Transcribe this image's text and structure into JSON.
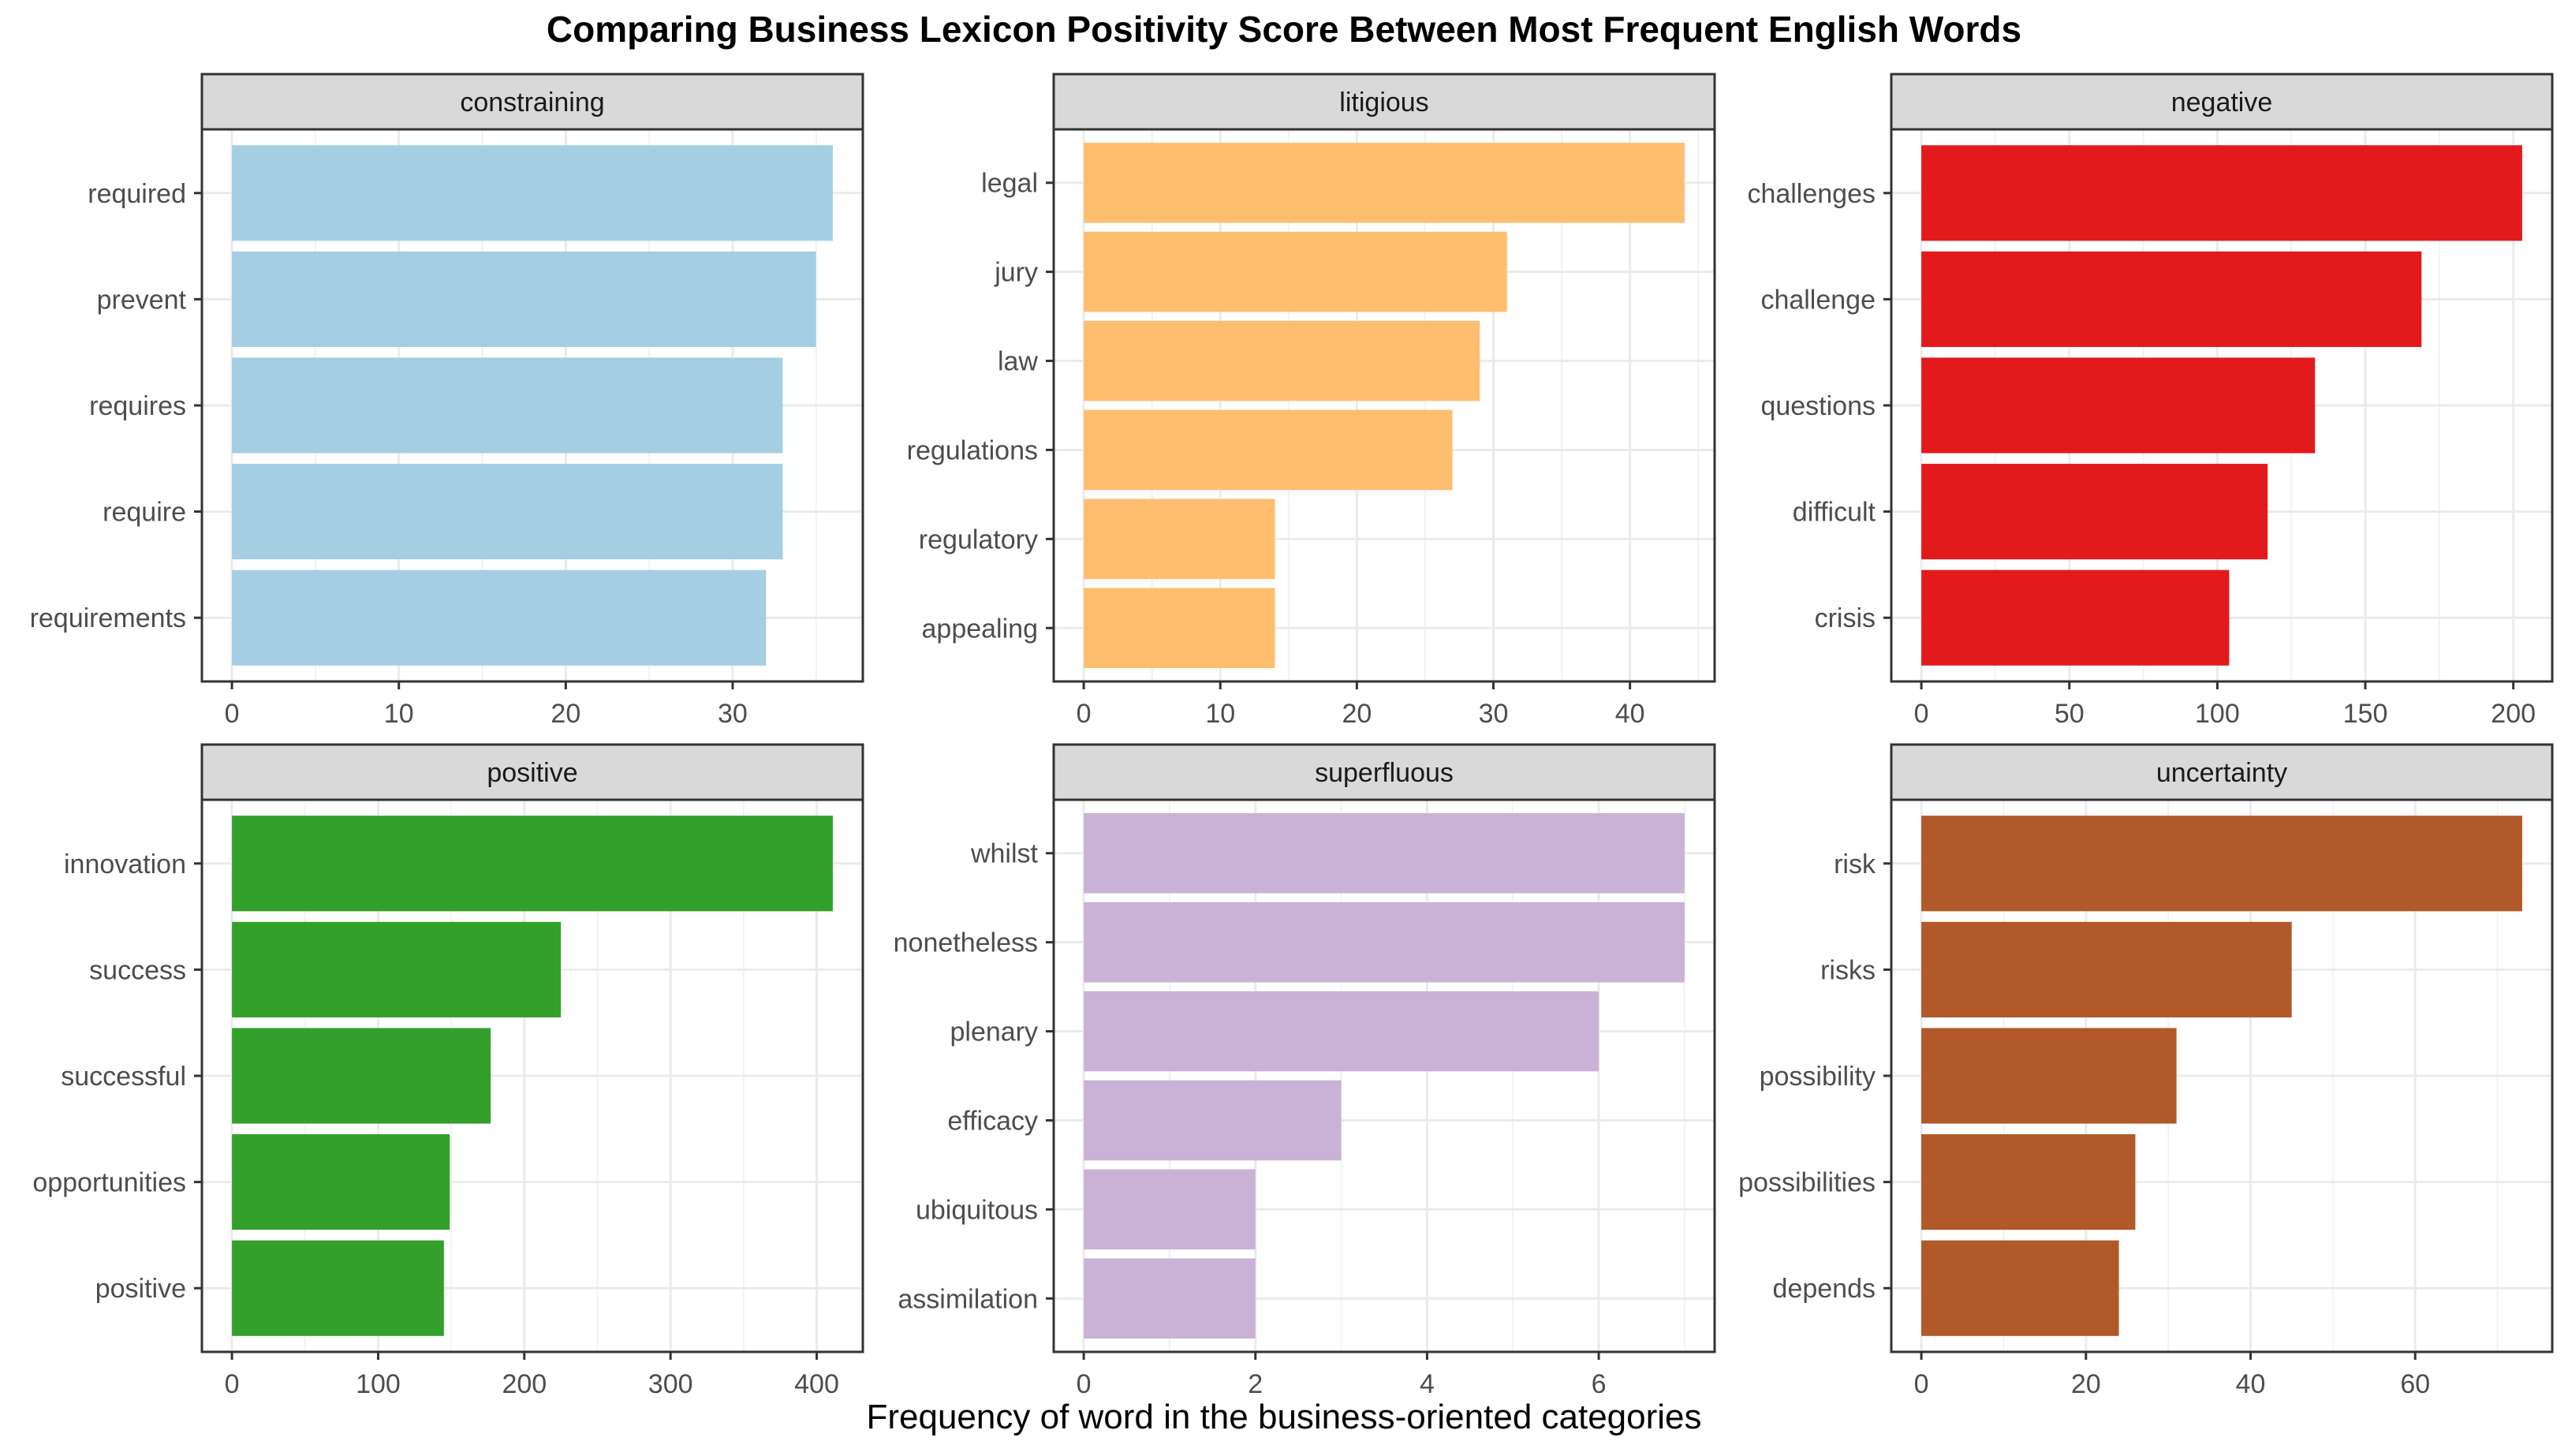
{
  "title": "Comparing Business Lexicon Positivity Score Between Most Frequent English Words",
  "xlabel": "Frequency of word in the business-oriented categories",
  "chart_data": [
    {
      "type": "bar",
      "facet": "constraining",
      "color": "#A6CEE3",
      "categories": [
        "required",
        "prevent",
        "requires",
        "require",
        "requirements"
      ],
      "values": [
        36,
        35,
        33,
        33,
        32
      ],
      "xlim": [
        -1.8,
        37.8
      ],
      "xticks": [
        0,
        10,
        20,
        30
      ]
    },
    {
      "type": "bar",
      "facet": "litigious",
      "color": "#FDBF6F",
      "categories": [
        "legal",
        "jury",
        "law",
        "regulations",
        "regulatory",
        "appealing"
      ],
      "values": [
        44,
        31,
        29,
        27,
        14,
        14
      ],
      "xlim": [
        -2.2,
        46.2
      ],
      "xticks": [
        0,
        10,
        20,
        30,
        40
      ]
    },
    {
      "type": "bar",
      "facet": "negative",
      "color": "#E31A1C",
      "categories": [
        "challenges",
        "challenge",
        "questions",
        "difficult",
        "crisis"
      ],
      "values": [
        203,
        169,
        133,
        117,
        104
      ],
      "xlim": [
        -10.15,
        213.15
      ],
      "xticks": [
        0,
        50,
        100,
        150,
        200
      ]
    },
    {
      "type": "bar",
      "facet": "positive",
      "color": "#33A02C",
      "categories": [
        "innovation",
        "success",
        "successful",
        "opportunities",
        "positive"
      ],
      "values": [
        411,
        225,
        177,
        149,
        145
      ],
      "xlim": [
        -20.55,
        431.55
      ],
      "xticks": [
        0,
        100,
        200,
        300,
        400
      ]
    },
    {
      "type": "bar",
      "facet": "superfluous",
      "color": "#CAB2D6",
      "categories": [
        "whilst",
        "nonetheless",
        "plenary",
        "efficacy",
        "ubiquitous",
        "assimilation"
      ],
      "values": [
        7,
        7,
        6,
        3,
        2,
        2
      ],
      "xlim": [
        -0.35,
        7.35
      ],
      "xticks": [
        0,
        2,
        4,
        6
      ]
    },
    {
      "type": "bar",
      "facet": "uncertainty",
      "color": "#B15928",
      "categories": [
        "risk",
        "risks",
        "possibility",
        "possibilities",
        "depends"
      ],
      "values": [
        73,
        45,
        31,
        26,
        24
      ],
      "xlim": [
        -3.65,
        76.65
      ],
      "xticks": [
        0,
        20,
        40,
        60
      ]
    }
  ]
}
